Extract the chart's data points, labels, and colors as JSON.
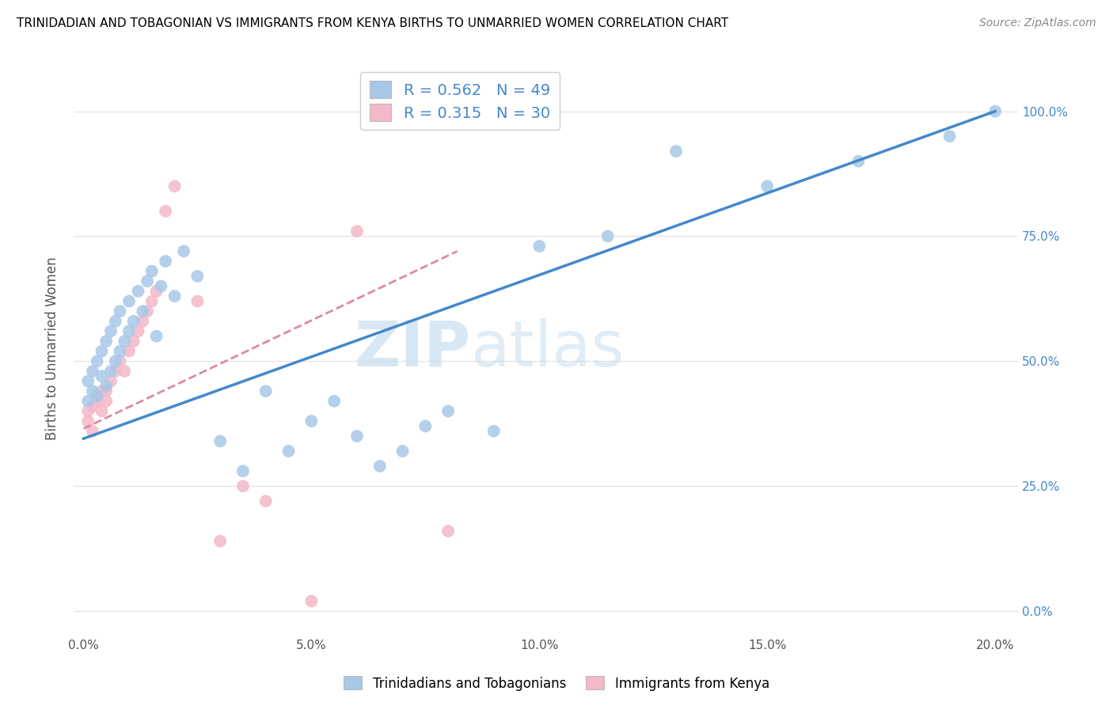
{
  "title": "TRINIDADIAN AND TOBAGONIAN VS IMMIGRANTS FROM KENYA BIRTHS TO UNMARRIED WOMEN CORRELATION CHART",
  "source": "Source: ZipAtlas.com",
  "ylabel": "Births to Unmarried Women",
  "x_ticks": [
    "0.0%",
    "5.0%",
    "10.0%",
    "15.0%",
    "20.0%"
  ],
  "x_tick_vals": [
    0.0,
    0.05,
    0.1,
    0.15,
    0.2
  ],
  "y_ticks_right": [
    "0.0%",
    "25.0%",
    "50.0%",
    "75.0%",
    "100.0%"
  ],
  "y_tick_vals": [
    0.0,
    0.25,
    0.5,
    0.75,
    1.0
  ],
  "xlim": [
    -0.002,
    0.205
  ],
  "ylim": [
    -0.05,
    1.1
  ],
  "blue_color": "#a8c8e8",
  "pink_color": "#f4b8c8",
  "blue_line_color": "#4488cc",
  "pink_line_color": "#dd88aa",
  "pink_line_dash": [
    6,
    4
  ],
  "watermark_zip": "ZIP",
  "watermark_atlas": "atlas",
  "legend_blue_R": "0.562",
  "legend_blue_N": "49",
  "legend_pink_R": "0.315",
  "legend_pink_N": "30",
  "legend_label_blue": "Trinidadians and Tobagonians",
  "legend_label_pink": "Immigrants from Kenya",
  "blue_scatter_x": [
    0.001,
    0.001,
    0.002,
    0.002,
    0.003,
    0.003,
    0.004,
    0.004,
    0.005,
    0.005,
    0.006,
    0.006,
    0.007,
    0.007,
    0.008,
    0.008,
    0.009,
    0.01,
    0.01,
    0.011,
    0.012,
    0.013,
    0.014,
    0.015,
    0.016,
    0.017,
    0.018,
    0.02,
    0.022,
    0.025,
    0.03,
    0.035,
    0.04,
    0.045,
    0.05,
    0.055,
    0.06,
    0.065,
    0.07,
    0.075,
    0.08,
    0.09,
    0.1,
    0.115,
    0.13,
    0.15,
    0.17,
    0.19,
    0.2
  ],
  "blue_scatter_y": [
    0.42,
    0.46,
    0.44,
    0.48,
    0.43,
    0.5,
    0.47,
    0.52,
    0.45,
    0.54,
    0.48,
    0.56,
    0.5,
    0.58,
    0.52,
    0.6,
    0.54,
    0.56,
    0.62,
    0.58,
    0.64,
    0.6,
    0.66,
    0.68,
    0.55,
    0.65,
    0.7,
    0.63,
    0.72,
    0.67,
    0.34,
    0.28,
    0.44,
    0.32,
    0.38,
    0.42,
    0.35,
    0.29,
    0.32,
    0.37,
    0.4,
    0.36,
    0.73,
    0.75,
    0.92,
    0.85,
    0.9,
    0.95,
    1.0
  ],
  "pink_scatter_x": [
    0.001,
    0.001,
    0.002,
    0.002,
    0.003,
    0.003,
    0.004,
    0.004,
    0.005,
    0.005,
    0.006,
    0.007,
    0.008,
    0.009,
    0.01,
    0.011,
    0.012,
    0.013,
    0.014,
    0.015,
    0.016,
    0.018,
    0.02,
    0.025,
    0.03,
    0.035,
    0.04,
    0.05,
    0.06,
    0.08
  ],
  "pink_scatter_y": [
    0.4,
    0.38,
    0.41,
    0.36,
    0.43,
    0.42,
    0.44,
    0.4,
    0.42,
    0.44,
    0.46,
    0.48,
    0.5,
    0.48,
    0.52,
    0.54,
    0.56,
    0.58,
    0.6,
    0.62,
    0.64,
    0.8,
    0.85,
    0.62,
    0.14,
    0.25,
    0.22,
    0.02,
    0.76,
    0.16
  ],
  "blue_line_x": [
    0.0,
    0.2
  ],
  "blue_line_y": [
    0.345,
    1.0
  ],
  "pink_line_x": [
    0.0,
    0.082
  ],
  "pink_line_y": [
    0.365,
    0.72
  ]
}
